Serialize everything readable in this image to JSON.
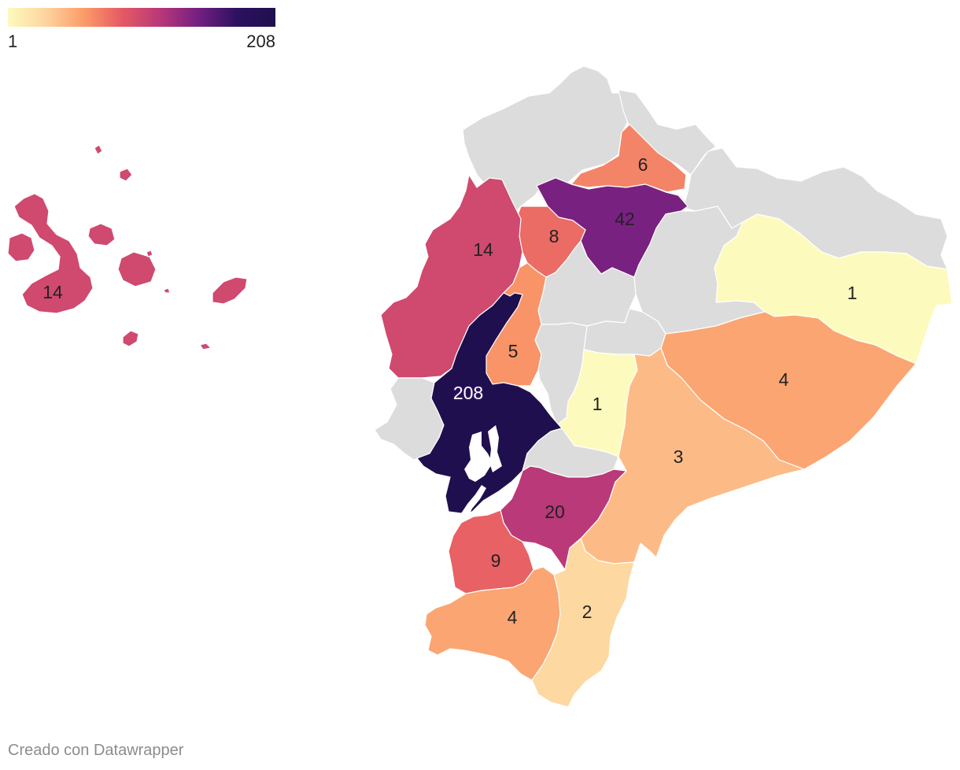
{
  "legend": {
    "min_label": "1",
    "max_label": "208",
    "gradient": [
      "#fcfbbd",
      "#fdd49e",
      "#fb9b68",
      "#e55964",
      "#b73779",
      "#721f81",
      "#2c115f",
      "#200f4e"
    ]
  },
  "credit": "Creado con Datawrapper",
  "colors": {
    "no_data": "#dcdcdc",
    "water": "#ffffff",
    "label_dark": "#222222",
    "label_light": "#ffffff"
  },
  "regions": [
    {
      "id": "galapagos",
      "value": 14,
      "label": "14"
    },
    {
      "id": "esmeraldas",
      "value": null,
      "label": ""
    },
    {
      "id": "carchi",
      "value": null,
      "label": ""
    },
    {
      "id": "sucumbios",
      "value": null,
      "label": ""
    },
    {
      "id": "imbabura",
      "value": 6,
      "label": "6"
    },
    {
      "id": "pichincha",
      "value": 42,
      "label": "42"
    },
    {
      "id": "santo-domingo",
      "value": 8,
      "label": "8"
    },
    {
      "id": "manabi",
      "value": 14,
      "label": "14"
    },
    {
      "id": "napo",
      "value": null,
      "label": ""
    },
    {
      "id": "cotopaxi",
      "value": null,
      "label": ""
    },
    {
      "id": "tungurahua",
      "value": null,
      "label": ""
    },
    {
      "id": "orellana",
      "value": 1,
      "label": "1"
    },
    {
      "id": "los-rios",
      "value": 5,
      "label": "5"
    },
    {
      "id": "bolivar",
      "value": null,
      "label": ""
    },
    {
      "id": "chimborazo",
      "value": 1,
      "label": "1"
    },
    {
      "id": "pastaza",
      "value": 4,
      "label": "4"
    },
    {
      "id": "santa-elena",
      "value": null,
      "label": ""
    },
    {
      "id": "guayas",
      "value": 208,
      "label": "208"
    },
    {
      "id": "canar",
      "value": null,
      "label": ""
    },
    {
      "id": "morona-santiago",
      "value": 3,
      "label": "3"
    },
    {
      "id": "azuay",
      "value": 20,
      "label": "20"
    },
    {
      "id": "el-oro",
      "value": 9,
      "label": "9"
    },
    {
      "id": "loja",
      "value": 4,
      "label": "4"
    },
    {
      "id": "zamora-chinchipe",
      "value": 2,
      "label": "2"
    }
  ]
}
